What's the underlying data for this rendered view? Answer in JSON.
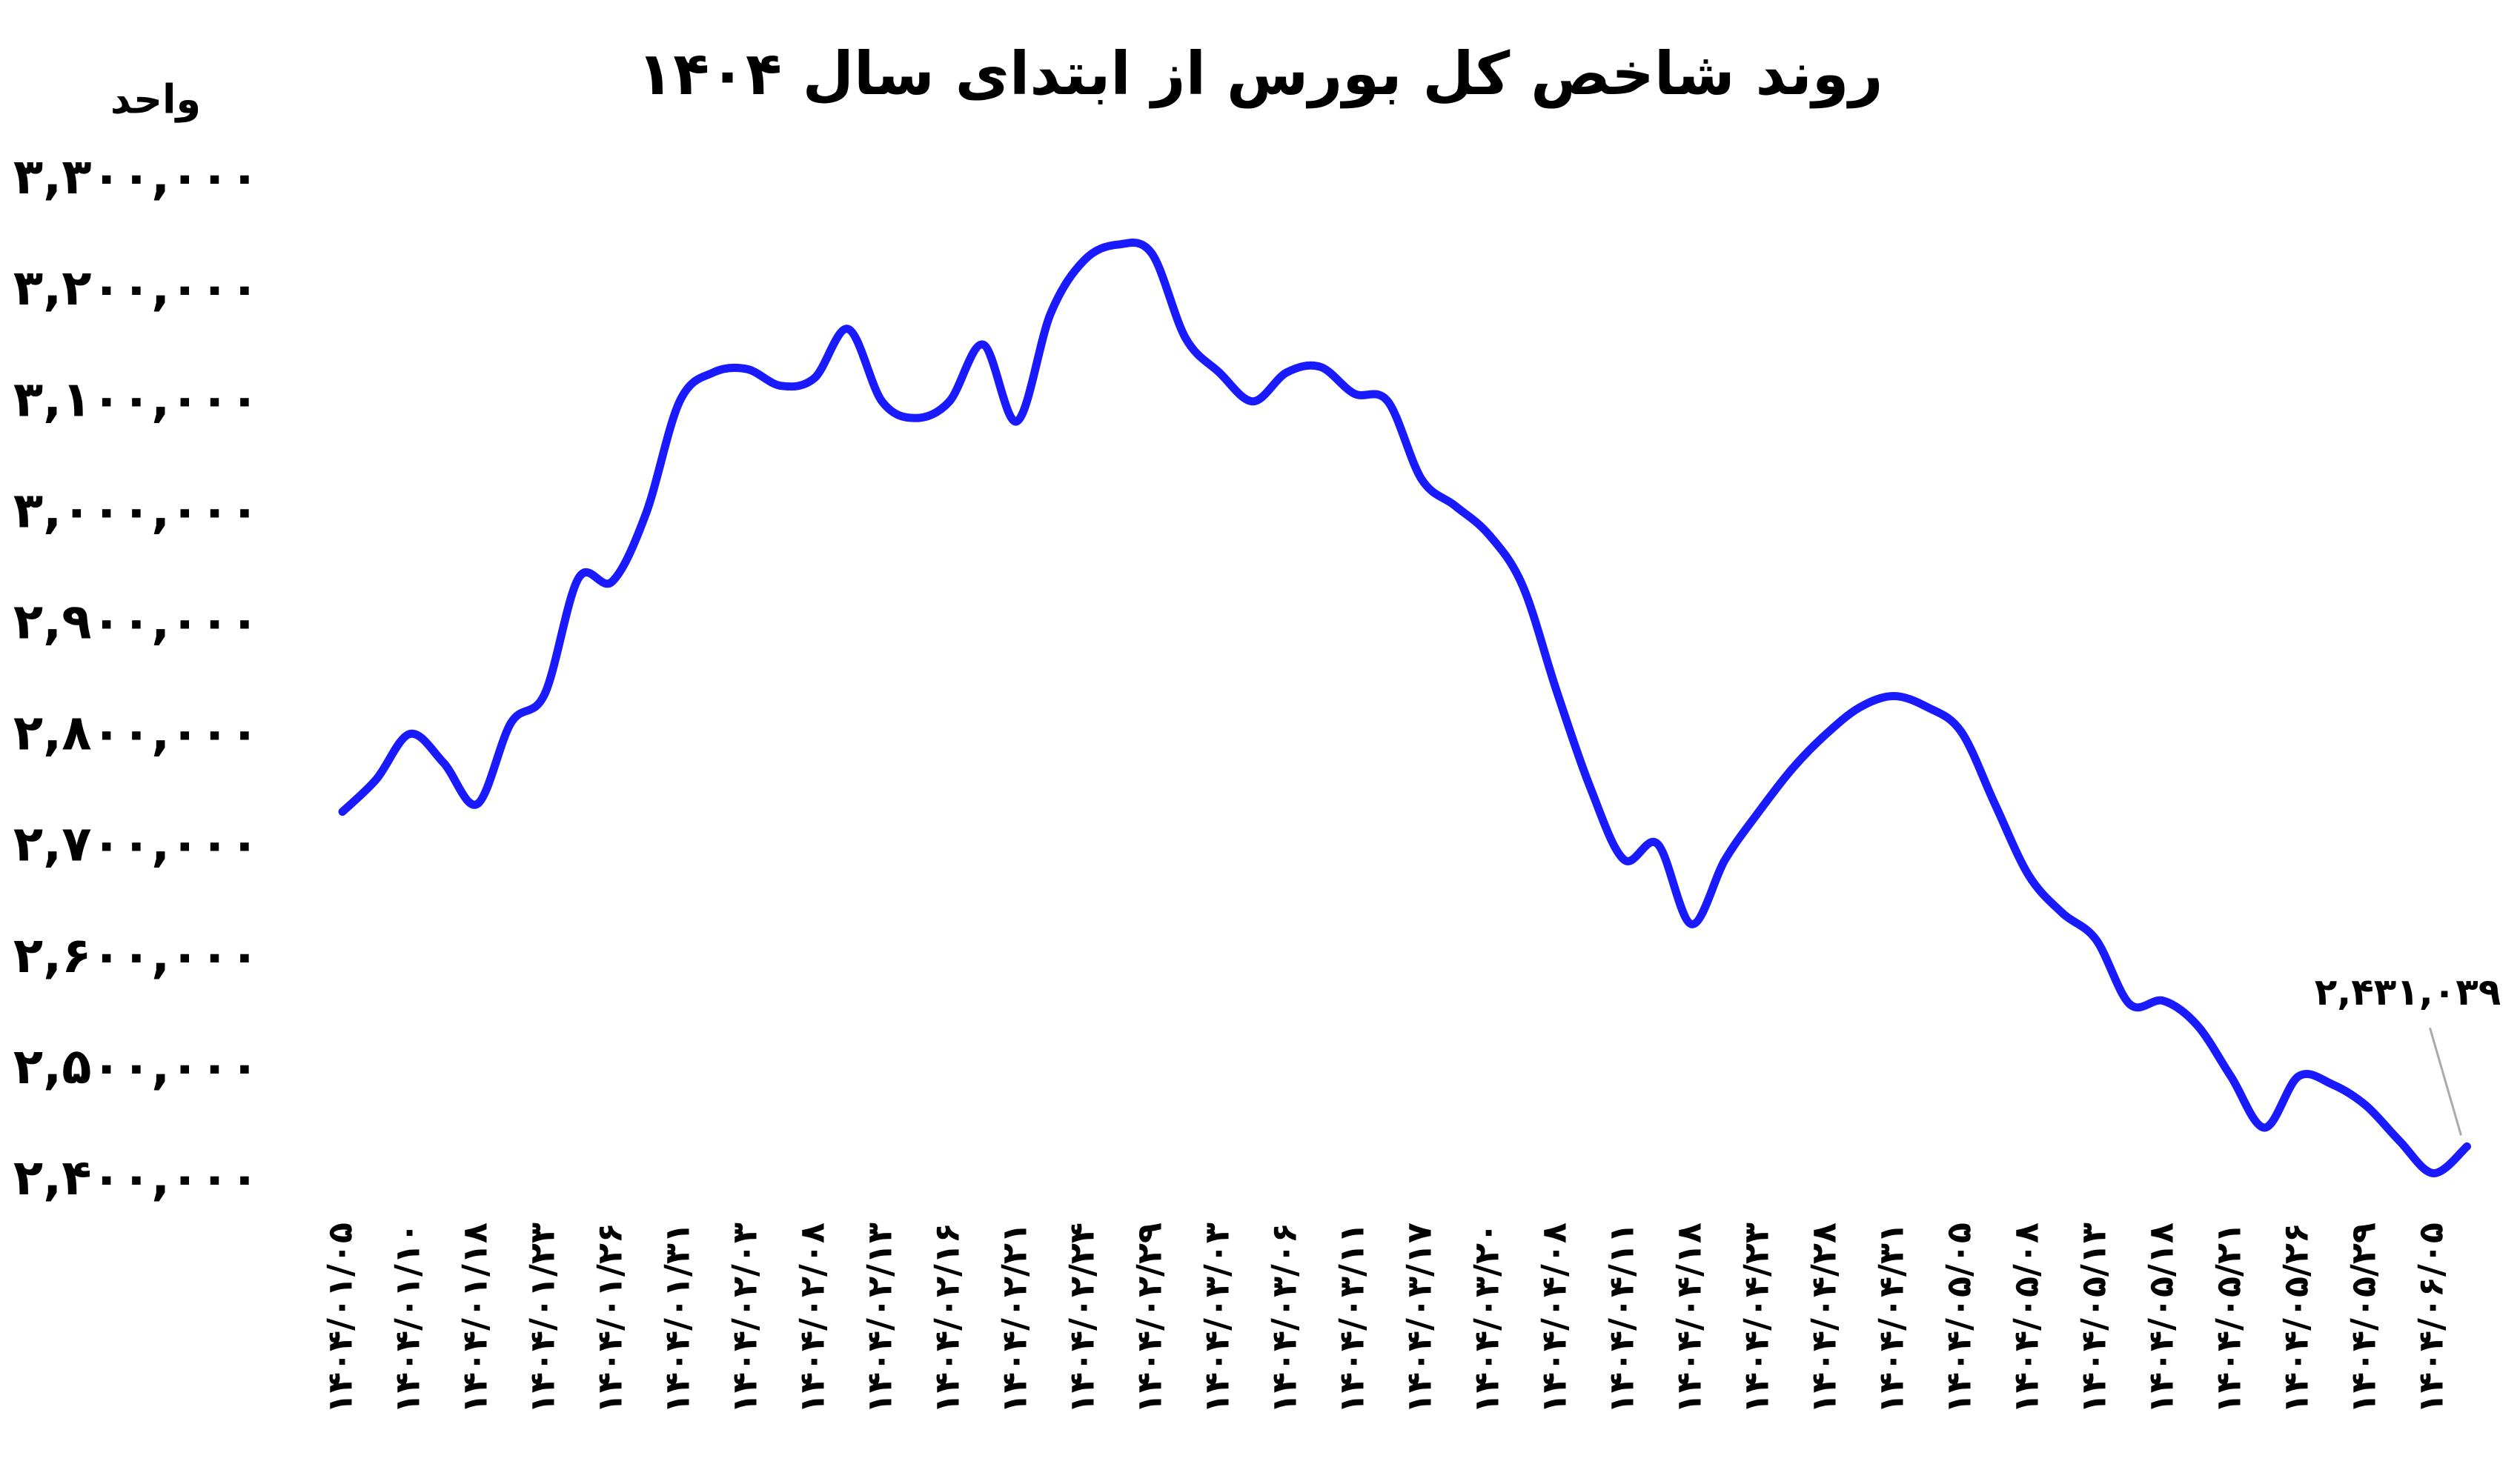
{
  "chart_data": {
    "type": "line",
    "title": "روند شاخص کل بورس از ابتدای سال ۱۴۰۴",
    "y_label": "واحد",
    "categories": [
      "۱۴۰۴/۰۱/۰۵",
      null,
      "۱۴۰۴/۰۱/۱۰",
      null,
      "۱۴۰۴/۰۱/۱۸",
      null,
      "۱۴۰۴/۰۱/۲۳",
      null,
      "۱۴۰۴/۰۱/۲۶",
      null,
      "۱۴۰۴/۰۱/۳۱",
      null,
      "۱۴۰۴/۰۲/۰۳",
      null,
      "۱۴۰۴/۰۲/۰۸",
      null,
      "۱۴۰۴/۰۲/۱۳",
      null,
      "۱۴۰۴/۰۲/۱۶",
      null,
      "۱۴۰۴/۰۲/۲۱",
      null,
      "۱۴۰۴/۰۲/۲۴",
      null,
      "۱۴۰۴/۰۲/۲۹",
      null,
      "۱۴۰۴/۰۳/۰۳",
      null,
      "۱۴۰۴/۰۳/۰۶",
      null,
      "۱۴۰۴/۰۳/۱۱",
      null,
      "۱۴۰۴/۰۳/۱۷",
      null,
      "۱۴۰۴/۰۳/۲۰",
      null,
      "۱۴۰۴/۰۴/۰۸",
      null,
      "۱۴۰۴/۰۴/۱۱",
      null,
      "۱۴۰۴/۰۴/۱۸",
      null,
      "۱۴۰۴/۰۴/۲۳",
      null,
      "۱۴۰۴/۰۴/۲۸",
      null,
      "۱۴۰۴/۰۴/۳۱",
      null,
      "۱۴۰۴/۰۵/۰۵",
      null,
      "۱۴۰۴/۰۵/۰۸",
      null,
      "۱۴۰۴/۰۵/۱۳",
      null,
      "۱۴۰۴/۰۵/۱۸",
      null,
      "۱۴۰۴/۰۵/۲۱",
      null,
      "۱۴۰۴/۰۵/۲۶",
      null,
      "۱۴۰۴/۰۵/۲۹",
      null,
      "۱۴۰۴/۰۶/۰۵",
      null
    ],
    "series": [
      {
        "color": "#1a1aff",
        "values": [
          2732000,
          2761000,
          2802000,
          2776000,
          2739000,
          2812000,
          2838000,
          2942000,
          2939000,
          3000000,
          3101000,
          3127000,
          3130000,
          3115000,
          3122000,
          3166000,
          3101000,
          3086000,
          3101000,
          3152000,
          3083000,
          3180000,
          3228000,
          3242000,
          3234000,
          3158000,
          3127000,
          3101000,
          3127000,
          3132000,
          3108000,
          3101000,
          3031000,
          3007000,
          2981000,
          2935000,
          2841000,
          2754000,
          2689000,
          2703000,
          2631000,
          2689000,
          2732000,
          2771000,
          2802000,
          2826000,
          2836000,
          2826000,
          2804000,
          2739000,
          2675000,
          2641000,
          2617000,
          2559000,
          2562000,
          2540000,
          2494000,
          2448000,
          2494000,
          2487000,
          2468000,
          2436000,
          2407000,
          2431039
        ],
        "value_labels": [
          null,
          null,
          null,
          null,
          null,
          null,
          null,
          null,
          null,
          null,
          null,
          null,
          null,
          null,
          null,
          null,
          null,
          null,
          null,
          null,
          null,
          null,
          null,
          null,
          null,
          null,
          null,
          null,
          null,
          null,
          null,
          null,
          null,
          null,
          null,
          null,
          null,
          null,
          null,
          null,
          null,
          null,
          null,
          null,
          null,
          null,
          null,
          null,
          null,
          null,
          null,
          null,
          null,
          null,
          null,
          null,
          null,
          null,
          null,
          null,
          null,
          null,
          null,
          "۲,۴۳۱,۰۳۹"
        ]
      }
    ],
    "ylim": [
      2400000,
      3300000
    ],
    "yticks": [
      {
        "value": 2400000,
        "label": "۲,۴۰۰,۰۰۰"
      },
      {
        "value": 2500000,
        "label": "۲,۵۰۰,۰۰۰"
      },
      {
        "value": 2600000,
        "label": "۲,۶۰۰,۰۰۰"
      },
      {
        "value": 2700000,
        "label": "۲,۷۰۰,۰۰۰"
      },
      {
        "value": 2800000,
        "label": "۲,۸۰۰,۰۰۰"
      },
      {
        "value": 2900000,
        "label": "۲,۹۰۰,۰۰۰"
      },
      {
        "value": 3000000,
        "label": "۳,۰۰۰,۰۰۰"
      },
      {
        "value": 3100000,
        "label": "۳,۱۰۰,۰۰۰"
      },
      {
        "value": 3200000,
        "label": "۳,۲۰۰,۰۰۰"
      },
      {
        "value": 3300000,
        "label": "۳,۳۰۰,۰۰۰"
      }
    ],
    "grid": false
  }
}
